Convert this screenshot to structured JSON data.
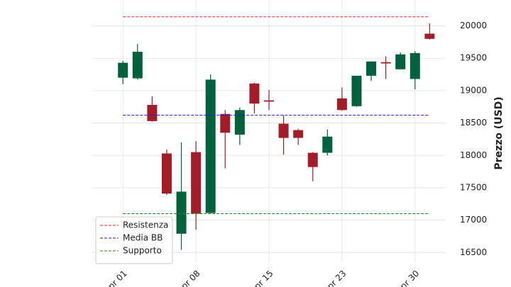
{
  "chart_data": {
    "type": "candlestick",
    "ylabel": "Prezzo (USD)",
    "categories": [
      "Apr 01",
      null,
      null,
      null,
      null,
      "Apr 08",
      null,
      null,
      null,
      null,
      "Apr 15",
      null,
      null,
      null,
      null,
      "Apr 23",
      null,
      null,
      null,
      null,
      "Apr 30",
      null
    ],
    "open": [
      19200,
      19190,
      18780,
      18030,
      16790,
      18050,
      17110,
      18640,
      18320,
      19110,
      18850,
      18490,
      18390,
      18040,
      18040,
      18880,
      18760,
      19230,
      19440,
      19330,
      19180,
      19880
    ],
    "high": [
      19460,
      19720,
      18910,
      18090,
      18200,
      18220,
      19250,
      18700,
      18740,
      19120,
      19010,
      18620,
      18410,
      18050,
      18400,
      19050,
      19230,
      19450,
      19530,
      19590,
      19610,
      20040
    ],
    "low": [
      19100,
      19170,
      18520,
      17390,
      16540,
      16850,
      17100,
      17800,
      18160,
      18650,
      18700,
      18010,
      18160,
      17600,
      18000,
      18690,
      18750,
      19150,
      19180,
      19330,
      19020,
      19790
    ],
    "close": [
      19430,
      19600,
      18530,
      17410,
      17440,
      17100,
      19170,
      18350,
      18700,
      18800,
      18830,
      18270,
      18270,
      17820,
      18290,
      18700,
      19230,
      19450,
      19420,
      19560,
      19580,
      19800
    ],
    "up_color": "#00613d",
    "down_color": "#a31d28",
    "hlines": [
      {
        "name": "Resistenza",
        "value": 20140,
        "color": "#e8242b"
      },
      {
        "name": "Media BB",
        "value": 18620,
        "color": "#1c1ce0"
      },
      {
        "name": "Supporto",
        "value": 17100,
        "color": "#1d8a1d"
      }
    ],
    "xlim": [
      -2.1,
      22.1
    ],
    "ylim": [
      16350,
      20400
    ],
    "yticks": [
      16500,
      17000,
      17500,
      18000,
      18500,
      19000,
      19500,
      20000
    ],
    "grid": true,
    "legend": "lower left"
  }
}
